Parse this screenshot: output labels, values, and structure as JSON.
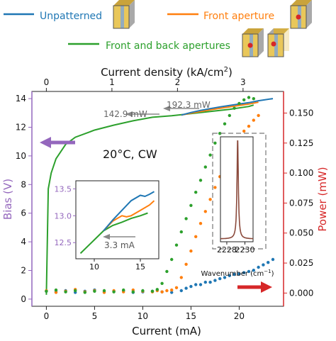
{
  "chart_data": {
    "type": "line",
    "colors": {
      "unpatterned": "#1f77b4",
      "front": "#ff7f0e",
      "both": "#2ca02c",
      "bias_axis": "#9467bd",
      "power_axis": "#d62728",
      "inset_spectrum": "#8b4a3c",
      "annotation": "#888888"
    },
    "legend": {
      "placement": "top",
      "entries": [
        {
          "key": "unpatterned",
          "label": "Unpatterned"
        },
        {
          "key": "front",
          "label": "Front aperture"
        },
        {
          "key": "both",
          "label": "Front and back apertures"
        }
      ]
    },
    "axes": {
      "x_bottom": {
        "label": "Current (mA)",
        "range": [
          -1.5,
          24.6
        ],
        "ticks": [
          0,
          5,
          10,
          15,
          20
        ]
      },
      "x_top": {
        "label": "Current density (kA/cm",
        "label_sup": "2",
        "label_tail": ")",
        "ticks": [
          0,
          1,
          2,
          3
        ],
        "ma_per_unit": 6.8
      },
      "y_left": {
        "label": "Bias (V)",
        "range": [
          -0.5,
          14.5
        ],
        "ticks": [
          0,
          2,
          4,
          6,
          8,
          10,
          12,
          14
        ]
      },
      "y_right": {
        "label": "Power (mW)",
        "range": [
          -0.011,
          0.168
        ],
        "ticks": [
          0.0,
          0.025,
          0.05,
          0.075,
          0.1,
          0.125,
          0.15
        ],
        "tick_labels": [
          "0.000",
          "0.025",
          "0.050",
          "0.075",
          "0.100",
          "0.125",
          "0.150"
        ]
      }
    },
    "annotations": {
      "condition": "20°C, CW",
      "mw_high": "192.3 mW",
      "mw_low": "142.9 mW",
      "inset_shift": "3.3 mA"
    },
    "bias_series": [
      {
        "key": "both",
        "x": [
          0.0,
          0.2,
          0.5,
          1,
          2,
          3,
          5,
          7,
          9,
          11,
          13,
          15,
          17,
          19,
          21,
          21.5
        ],
        "y": [
          0.3,
          7.7,
          8.8,
          9.8,
          10.8,
          11.3,
          11.8,
          12.15,
          12.45,
          12.7,
          12.8,
          12.95,
          13.1,
          13.25,
          13.45,
          13.55
        ]
      },
      {
        "key": "front",
        "x": [
          14,
          15,
          16,
          17,
          18,
          19,
          20,
          21,
          22
        ],
        "y": [
          12.85,
          12.98,
          13.1,
          13.22,
          13.32,
          13.42,
          13.52,
          13.62,
          13.75
        ]
      },
      {
        "key": "unpatterned",
        "x": [
          14,
          15,
          16,
          17,
          18,
          19,
          20,
          21,
          22,
          23.5
        ],
        "y": [
          12.85,
          13.03,
          13.18,
          13.3,
          13.42,
          13.52,
          13.62,
          13.72,
          13.85,
          14.0
        ]
      }
    ],
    "power_series": [
      {
        "key": "unpatterned",
        "x": [
          0,
          1,
          2,
          3,
          4,
          5,
          6,
          7,
          8,
          9,
          10,
          11,
          12,
          13,
          14.0,
          14.5,
          15.0,
          15.5,
          16.0,
          16.5,
          17.0,
          17.5,
          18.0,
          18.5,
          19.0,
          19.5,
          20.0,
          20.5,
          21.0,
          21.5,
          22.0,
          22.5,
          23.0,
          23.5
        ],
        "y": [
          0.0015,
          0.001,
          0.002,
          0.0005,
          0.0015,
          0.0025,
          0.001,
          0.0015,
          0.002,
          0.0005,
          0.001,
          0.0015,
          0.001,
          0.0005,
          0.002,
          0.004,
          0.0055,
          0.007,
          0.007,
          0.009,
          0.009,
          0.0105,
          0.012,
          0.013,
          0.0145,
          0.0155,
          0.016,
          0.017,
          0.018,
          0.019,
          0.0215,
          0.0235,
          0.0255,
          0.028
        ]
      },
      {
        "key": "front",
        "x": [
          0,
          1,
          2,
          3,
          4,
          5,
          6,
          7,
          8,
          9,
          10,
          11,
          11.5,
          12.0,
          12.5,
          13.0,
          13.5,
          14.0,
          14.5,
          15.0,
          15.5,
          16.0,
          16.5,
          17.0,
          17.5,
          18.0,
          18.5,
          19.0,
          19.5,
          20.0,
          20.5,
          21.0,
          21.5,
          22.0
        ],
        "y": [
          0.002,
          0.0005,
          0.0015,
          0.003,
          0.001,
          0.002,
          0.0005,
          0.002,
          0.001,
          0.0025,
          0.0015,
          0.001,
          0.002,
          0.001,
          0.002,
          0.0025,
          0.0045,
          0.013,
          0.024,
          0.035,
          0.047,
          0.058,
          0.068,
          0.078,
          0.088,
          0.097,
          0.107,
          0.115,
          0.124,
          0.129,
          0.135,
          0.139,
          0.144,
          0.148
        ]
      },
      {
        "key": "both",
        "x": [
          0,
          1,
          2,
          3,
          4,
          5,
          6,
          7,
          8,
          9,
          10,
          11,
          11.5,
          12.0,
          12.5,
          13.0,
          13.5,
          14.0,
          14.5,
          15.0,
          15.5,
          16.0,
          16.5,
          17.0,
          17.5,
          18.0,
          18.5,
          19.0,
          19.5,
          20.0,
          20.5,
          21.0,
          21.5
        ],
        "y": [
          0.0015,
          0.0025,
          0.001,
          0.002,
          0.0005,
          0.0015,
          0.002,
          0.001,
          0.0025,
          0.001,
          0.002,
          0.0015,
          0.003,
          0.008,
          0.018,
          0.028,
          0.04,
          0.051,
          0.062,
          0.073,
          0.084,
          0.094,
          0.105,
          0.115,
          0.125,
          0.133,
          0.141,
          0.148,
          0.154,
          0.158,
          0.161,
          0.163,
          0.162
        ]
      }
    ],
    "inset_zoom": {
      "x_ticks": [
        10,
        15
      ],
      "x_range": [
        8,
        17
      ],
      "y_ticks": [
        12.5,
        13.0,
        13.5
      ],
      "y_range": [
        12.2,
        13.65
      ],
      "series": [
        {
          "key": "both",
          "x": [
            8.5,
            10,
            11,
            12,
            13,
            14,
            15,
            15.8
          ],
          "y": [
            12.3,
            12.55,
            12.72,
            12.82,
            12.88,
            12.95,
            13.0,
            13.05
          ]
        },
        {
          "key": "front",
          "x": [
            11,
            12,
            13,
            13.5,
            14,
            15,
            16,
            16.5
          ],
          "y": [
            12.72,
            12.9,
            13.0,
            12.98,
            13.0,
            13.1,
            13.2,
            13.28
          ]
        },
        {
          "key": "unpatterned",
          "x": [
            11,
            12,
            13,
            14,
            15,
            15.5,
            16,
            16.5
          ],
          "y": [
            12.72,
            12.92,
            13.1,
            13.28,
            13.38,
            13.36,
            13.4,
            13.45
          ]
        }
      ]
    },
    "inset_spectrum": {
      "xlabel": "Wavenumber (cm",
      "xlabel_sup": "−1",
      "xlabel_tail": ")",
      "x_ticks": [
        2228,
        2230
      ],
      "x_range": [
        2227.3,
        2230.9
      ],
      "peak": 2229.2
    }
  }
}
